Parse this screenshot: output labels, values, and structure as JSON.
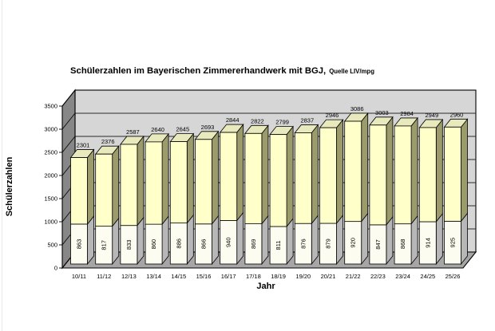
{
  "chart": {
    "title_main": "Schülerzahlen im Bayerischen Zimmererhandwerk mit BGJ,",
    "title_source": "Quelle LIV/mpg",
    "x_axis_title": "Jahr",
    "y_axis_title": "Schülerzahlen"
  },
  "chart_data": {
    "type": "bar",
    "variant": "3d-stacked-column",
    "title": "Schülerzahlen im Bayerischen Zimmererhandwerk mit BGJ, Quelle LIV/mpg",
    "xlabel": "Jahr",
    "ylabel": "Schülerzahlen",
    "ylim": [
      0,
      3500
    ],
    "ytick_step": 500,
    "grid": true,
    "legend": false,
    "categories": [
      "10/11",
      "11/12",
      "12/13",
      "13/14",
      "14/15",
      "15/16",
      "16/17",
      "17/18",
      "18/19",
      "19/20",
      "20/21",
      "21/22",
      "22/23",
      "23/24",
      "24/25",
      "25/26"
    ],
    "series": [
      {
        "name": "lower-segment",
        "values": [
          863,
          817,
          833,
          860,
          886,
          866,
          940,
          869,
          811,
          876,
          879,
          920,
          847,
          868,
          914,
          925
        ],
        "front_color": "#FCFCF0",
        "side_color": "#B7B7B7",
        "label_style": "rotated-inside-bar"
      },
      {
        "name": "upper-segment",
        "values": [
          1438,
          1559,
          1754,
          1780,
          1759,
          1827,
          1904,
          1953,
          1988,
          1961,
          2067,
          2166,
          2156,
          2116,
          2035,
          2035
        ],
        "front_color": "#FFFFC9",
        "side_color": "#9B9B6C",
        "top_color": "#E9E9BE",
        "label_style": "none"
      }
    ],
    "totals": [
      2301,
      2376,
      2587,
      2640,
      2645,
      2693,
      2844,
      2822,
      2799,
      2837,
      2946,
      3086,
      3003,
      2984,
      2949,
      2960
    ],
    "total_labels_shown": true,
    "colors": {
      "back_wall": "#D6D6D6",
      "side_wall": "#878787",
      "floor": "#A6A6A6",
      "outline": "#000000",
      "gridline": "#2a2a2a",
      "background": "#FFFFFF"
    }
  }
}
